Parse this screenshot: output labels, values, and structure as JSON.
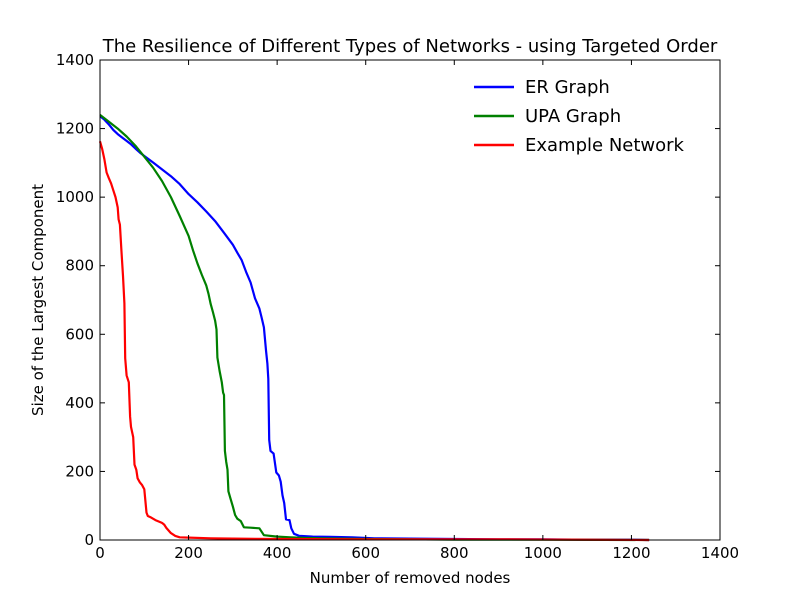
{
  "chart_data": {
    "type": "line",
    "title": "The Resilience of Different Types of Networks - using Targeted Order",
    "xlabel": "Number of removed nodes",
    "ylabel": "Size of the Largest Component",
    "xlim": [
      0,
      1400
    ],
    "ylim": [
      0,
      1400
    ],
    "xticks": [
      "0",
      "200",
      "400",
      "600",
      "800",
      "1000",
      "1200",
      "1400"
    ],
    "yticks": [
      "0",
      "200",
      "400",
      "600",
      "800",
      "1000",
      "1200",
      "1400"
    ],
    "grid": false,
    "legend_position": "top-right",
    "series": [
      {
        "name": "ER Graph",
        "color": "#0000ff",
        "points": [
          [
            0,
            1236
          ],
          [
            10,
            1226
          ],
          [
            20,
            1212
          ],
          [
            30,
            1196
          ],
          [
            40,
            1184
          ],
          [
            50,
            1174
          ],
          [
            60,
            1164
          ],
          [
            70,
            1154
          ],
          [
            80,
            1142
          ],
          [
            90,
            1130
          ],
          [
            100,
            1120
          ],
          [
            120,
            1101
          ],
          [
            140,
            1081
          ],
          [
            160,
            1061
          ],
          [
            180,
            1038
          ],
          [
            200,
            1009
          ],
          [
            220,
            985
          ],
          [
            240,
            958
          ],
          [
            260,
            930
          ],
          [
            280,
            896
          ],
          [
            300,
            861
          ],
          [
            310,
            838
          ],
          [
            320,
            816
          ],
          [
            330,
            782
          ],
          [
            340,
            751
          ],
          [
            350,
            705
          ],
          [
            360,
            675
          ],
          [
            365,
            649
          ],
          [
            370,
            620
          ],
          [
            375,
            550
          ],
          [
            378,
            514
          ],
          [
            380,
            470
          ],
          [
            382,
            292
          ],
          [
            385,
            260
          ],
          [
            392,
            252
          ],
          [
            398,
            197
          ],
          [
            404,
            188
          ],
          [
            408,
            170
          ],
          [
            412,
            130
          ],
          [
            416,
            108
          ],
          [
            420,
            60
          ],
          [
            428,
            58
          ],
          [
            432,
            34
          ],
          [
            438,
            18
          ],
          [
            450,
            12
          ],
          [
            480,
            10
          ],
          [
            520,
            9
          ],
          [
            570,
            8
          ],
          [
            620,
            5
          ],
          [
            700,
            4
          ],
          [
            800,
            3
          ],
          [
            900,
            2
          ],
          [
            1000,
            2
          ],
          [
            1100,
            1
          ],
          [
            1200,
            1
          ],
          [
            1240,
            0
          ]
        ]
      },
      {
        "name": "UPA Graph",
        "color": "#008000",
        "points": [
          [
            0,
            1240
          ],
          [
            20,
            1220
          ],
          [
            40,
            1200
          ],
          [
            60,
            1177
          ],
          [
            80,
            1150
          ],
          [
            100,
            1118
          ],
          [
            120,
            1086
          ],
          [
            140,
            1047
          ],
          [
            160,
            1000
          ],
          [
            180,
            945
          ],
          [
            200,
            887
          ],
          [
            210,
            845
          ],
          [
            220,
            807
          ],
          [
            230,
            773
          ],
          [
            240,
            742
          ],
          [
            245,
            718
          ],
          [
            250,
            688
          ],
          [
            255,
            665
          ],
          [
            260,
            640
          ],
          [
            263,
            614
          ],
          [
            265,
            532
          ],
          [
            270,
            493
          ],
          [
            275,
            460
          ],
          [
            278,
            430
          ],
          [
            280,
            423
          ],
          [
            282,
            260
          ],
          [
            285,
            228
          ],
          [
            288,
            205
          ],
          [
            290,
            142
          ],
          [
            295,
            120
          ],
          [
            300,
            97
          ],
          [
            305,
            73
          ],
          [
            310,
            62
          ],
          [
            318,
            55
          ],
          [
            325,
            37
          ],
          [
            340,
            36
          ],
          [
            360,
            34
          ],
          [
            370,
            14
          ],
          [
            400,
            10
          ],
          [
            430,
            8
          ],
          [
            460,
            6
          ],
          [
            500,
            5
          ],
          [
            600,
            3
          ],
          [
            700,
            2
          ],
          [
            800,
            1
          ],
          [
            1000,
            1
          ],
          [
            1240,
            0
          ]
        ]
      },
      {
        "name": "Example Network",
        "color": "#ff0000",
        "points": [
          [
            0,
            1163
          ],
          [
            5,
            1140
          ],
          [
            10,
            1110
          ],
          [
            15,
            1072
          ],
          [
            20,
            1055
          ],
          [
            25,
            1040
          ],
          [
            30,
            1020
          ],
          [
            35,
            1000
          ],
          [
            40,
            970
          ],
          [
            42,
            935
          ],
          [
            45,
            920
          ],
          [
            48,
            850
          ],
          [
            52,
            770
          ],
          [
            55,
            690
          ],
          [
            57,
            530
          ],
          [
            60,
            480
          ],
          [
            65,
            460
          ],
          [
            68,
            360
          ],
          [
            70,
            330
          ],
          [
            75,
            300
          ],
          [
            78,
            220
          ],
          [
            82,
            205
          ],
          [
            85,
            180
          ],
          [
            90,
            168
          ],
          [
            95,
            160
          ],
          [
            100,
            148
          ],
          [
            102,
            120
          ],
          [
            105,
            80
          ],
          [
            108,
            70
          ],
          [
            115,
            66
          ],
          [
            125,
            58
          ],
          [
            140,
            50
          ],
          [
            145,
            45
          ],
          [
            150,
            35
          ],
          [
            160,
            20
          ],
          [
            170,
            12
          ],
          [
            180,
            8
          ],
          [
            200,
            7
          ],
          [
            250,
            5
          ],
          [
            300,
            4
          ],
          [
            400,
            3
          ],
          [
            600,
            2
          ],
          [
            900,
            2
          ],
          [
            1240,
            0
          ]
        ]
      }
    ]
  }
}
